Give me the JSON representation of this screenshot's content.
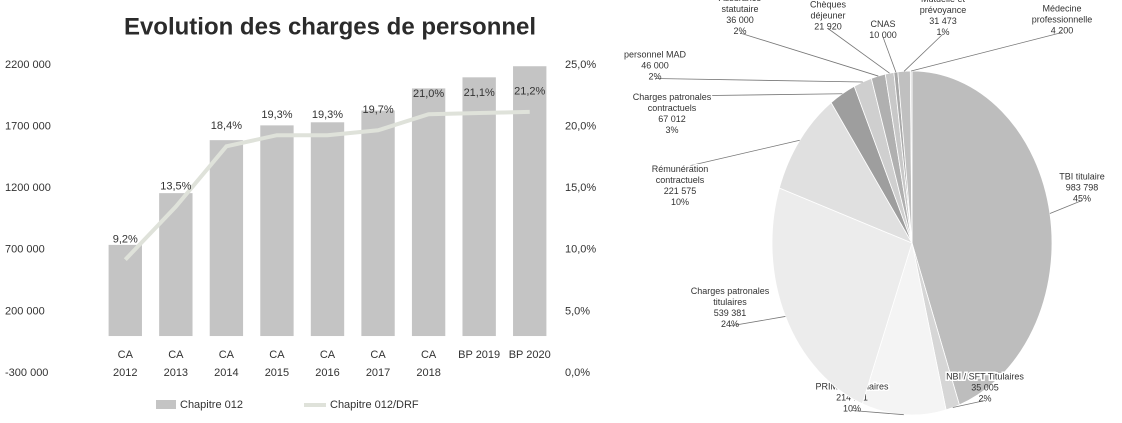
{
  "chart_data": [
    {
      "type": "bar_line",
      "title": "Evolution des charges de personnel",
      "categories": [
        [
          "CA",
          "2012"
        ],
        [
          "CA",
          "2013"
        ],
        [
          "CA",
          "2014"
        ],
        [
          "CA",
          "2015"
        ],
        [
          "CA",
          "2016"
        ],
        [
          "CA",
          "2017"
        ],
        [
          "CA",
          "2018"
        ],
        [
          "BP 2019"
        ],
        [
          "BP 2020"
        ]
      ],
      "series": [
        {
          "name": "Chapitre 012",
          "color": "#c4c4c4",
          "type": "bar",
          "values": [
            740000,
            1160000,
            1590000,
            1710000,
            1735000,
            1830000,
            2010000,
            2100000,
            2190000
          ]
        },
        {
          "name": "Chapitre 012/DRF",
          "color": "#dfe2da",
          "type": "line",
          "axis": "y2",
          "values": [
            9.2,
            13.5,
            18.4,
            19.3,
            19.3,
            19.7,
            21.0,
            21.1,
            21.2
          ],
          "value_labels": [
            "9,2%",
            "13,5%",
            "18,4%",
            "19,3%",
            "19,3%",
            "19,7%",
            "21,0%",
            "21,1%",
            "21,2%"
          ]
        }
      ],
      "ylim": [
        -300000,
        2200000
      ],
      "yticks": [
        {
          "value": -300000,
          "label": "-300 000"
        },
        {
          "value": 200000,
          "label": "200 000"
        },
        {
          "value": 700000,
          "label": "700 000"
        },
        {
          "value": 1200000,
          "label": "1200 000"
        },
        {
          "value": 1700000,
          "label": "1700 000"
        },
        {
          "value": 2200000,
          "label": "2200 000"
        }
      ],
      "y2lim": [
        0,
        25
      ],
      "y2ticks": [
        {
          "value": 0,
          "label": "0,0%"
        },
        {
          "value": 5,
          "label": "5,0%"
        },
        {
          "value": 10,
          "label": "10,0%"
        },
        {
          "value": 15,
          "label": "15,0%"
        },
        {
          "value": 20,
          "label": "20,0%"
        },
        {
          "value": 25,
          "label": "25,0%"
        }
      ],
      "legend": "bottom"
    },
    {
      "type": "pie",
      "labels": [
        [
          "TBI titulaire"
        ],
        [
          "NBI / SFT Titulaires"
        ],
        [
          "PRIMES Titulaires"
        ],
        [
          "Charges patronales",
          "titulaires"
        ],
        [
          "Rémunération",
          "contractuels"
        ],
        [
          "Charges patronales",
          "contractuels"
        ],
        [
          "personnel MAD"
        ],
        [
          "Assurance",
          "statutaire"
        ],
        [
          "Chèques",
          "déjeuner"
        ],
        [
          "CNAS"
        ],
        [
          "Mutuelle et",
          "prévoyance"
        ],
        [
          "Médecine",
          "professionnelle"
        ]
      ],
      "values": [
        983798,
        35005,
        214211,
        539381,
        221575,
        67012,
        46000,
        36000,
        21920,
        10000,
        31473,
        4200
      ],
      "value_labels": [
        "983 798",
        "35 005",
        "214 211",
        "539 381",
        "221 575",
        "67 012",
        "46 000",
        "36 000",
        "21 920",
        "10 000",
        "31 473",
        "4 200"
      ],
      "percent_labels": [
        "45%",
        "2%",
        "10%",
        "24%",
        "10%",
        "3%",
        "2%",
        "2%",
        null,
        null,
        "1%",
        null
      ],
      "colors": [
        "#bdbdbd",
        "#d6d6d6",
        "#f4f4f4",
        "#ececec",
        "#e0e0e0",
        "#9e9e9e",
        "#cfcfcf",
        "#b0b0b0",
        "#c8c8c8",
        "#a8a8a8",
        "#c0c0c0",
        "#d8d8d8"
      ]
    }
  ]
}
